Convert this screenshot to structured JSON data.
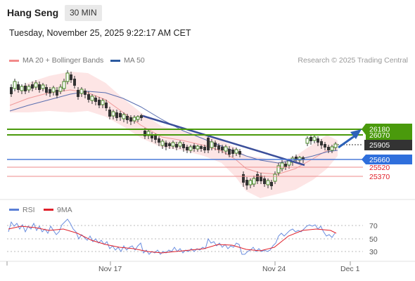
{
  "header": {
    "title": "Hang Seng",
    "timeframe": "30 MIN"
  },
  "subtitle": "Tuesday, November 25, 2025 9:22:17 AM CET",
  "legend": {
    "ma20": {
      "label": "MA 20 + Bollinger Bands",
      "color": "#f28a8a"
    },
    "ma50": {
      "label": "MA 50",
      "color": "#2c5aa0"
    }
  },
  "credit": "Research © 2025 Trading Central",
  "levels": [
    {
      "value": "26180",
      "style": "resistance",
      "color": "#4a9a0c"
    },
    {
      "value": "26070",
      "style": "resistance",
      "color": "#4a9a0c"
    },
    {
      "value": "25905",
      "style": "last",
      "color": "#333333"
    },
    {
      "value": "25660",
      "style": "pivot",
      "color": "#2f6fdc"
    },
    {
      "value": "25520",
      "style": "support",
      "color": "#e0202a"
    },
    {
      "value": "25370",
      "style": "support",
      "color": "#e0202a"
    }
  ],
  "rsi_legend": {
    "rsi": {
      "label": "RSI",
      "color": "#5a7fd6"
    },
    "ma": {
      "label": "9MA",
      "color": "#e0202a"
    }
  },
  "rsi_ticks": [
    "70",
    "50",
    "30"
  ],
  "x_ticks": [
    "Nov 17",
    "Nov 24",
    "Dec 1"
  ]
}
